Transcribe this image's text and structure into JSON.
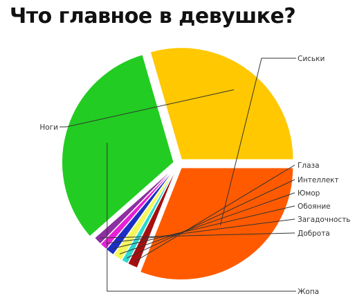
{
  "chart_data": {
    "type": "pie",
    "title": "Что главное в девушке?",
    "slices": [
      {
        "label": "Сиськи",
        "value": 31.0,
        "color": "#ff5a00"
      },
      {
        "label": "Глаза",
        "value": 1.5,
        "color": "#a50f0f"
      },
      {
        "label": "Интеллект",
        "value": 1.0,
        "color": "#2ad9cf"
      },
      {
        "label": "Юмор",
        "value": 1.4,
        "color": "#f4f75a"
      },
      {
        "label": "Обояние",
        "value": 1.3,
        "color": "#1c2fc4"
      },
      {
        "label": "Загадочность",
        "value": 1.1,
        "color": "#e81fd8"
      },
      {
        "label": "Доброта",
        "value": 1.2,
        "color": "#8c2fa0"
      },
      {
        "label": "Жопа",
        "value": 32.0,
        "color": "#22cc22"
      },
      {
        "label": "Ноги",
        "value": 29.5,
        "color": "#ffc800"
      }
    ]
  }
}
